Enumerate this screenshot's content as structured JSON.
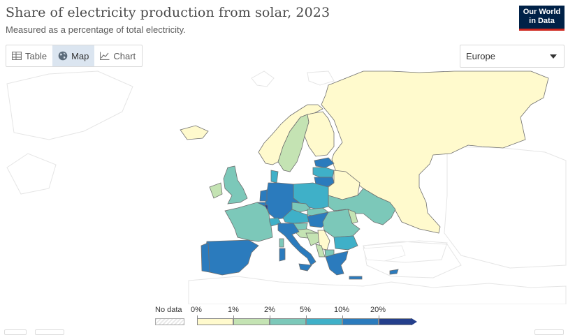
{
  "header": {
    "title": "Share of electricity production from solar, 2023",
    "subtitle": "Measured as a percentage of total electricity."
  },
  "logo": {
    "line1": "Our World",
    "line2": "in Data"
  },
  "tabs": [
    {
      "label": "Table",
      "icon": "table-icon",
      "active": false
    },
    {
      "label": "Map",
      "icon": "globe-icon",
      "active": true
    },
    {
      "label": "Chart",
      "icon": "line-chart-icon",
      "active": false
    }
  ],
  "region_select": {
    "value": "Europe"
  },
  "legend": {
    "nodata_label": "No data",
    "bins": [
      {
        "from": "0%",
        "to": "1%",
        "color": "#fffacd"
      },
      {
        "from": "1%",
        "to": "2%",
        "color": "#c4e3b3"
      },
      {
        "from": "2%",
        "to": "5%",
        "color": "#7cc8b9"
      },
      {
        "from": "5%",
        "to": "10%",
        "color": "#3fb0c8"
      },
      {
        "from": "10%",
        "to": "20%",
        "color": "#2b7bbd"
      },
      {
        "from": "20%",
        "to": "",
        "color": "#243f8c"
      }
    ],
    "tick_labels": [
      "0%",
      "1%",
      "2%",
      "5%",
      "10%",
      "20%"
    ],
    "nodata_color": "#e9e9e9"
  },
  "colors": {
    "c0": "#fffacd",
    "c1": "#c4e3b3",
    "c2": "#7cc8b9",
    "c3": "#3fb0c8",
    "c4": "#2b7bbd",
    "c5": "#243f8c",
    "border": "#6f6f6f",
    "nodata_outline": "#e5e5e5"
  }
}
